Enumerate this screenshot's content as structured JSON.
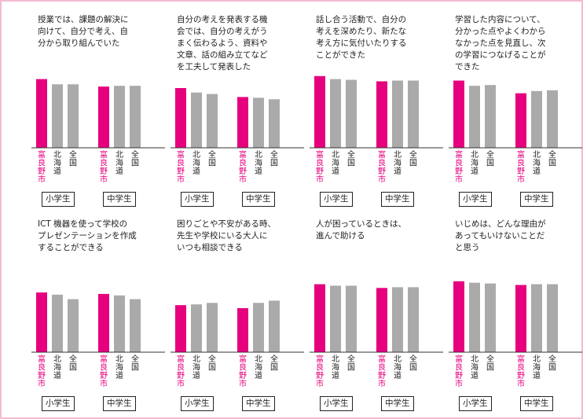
{
  "colors": {
    "city": "#e6007e",
    "other": "#aaaaaa",
    "axis": "#333333"
  },
  "chart_data": [
    {
      "type": "bar",
      "title": "授業では、課題の解決に\n向けて、自分で考え、自\n分から取り組んでいた",
      "categories": [
        "富良野市",
        "北海道",
        "全国"
      ],
      "series": [
        {
          "name": "小学生",
          "values": [
            92,
            85,
            85
          ]
        },
        {
          "name": "中学生",
          "values": [
            82,
            83,
            83
          ]
        }
      ]
    },
    {
      "type": "bar",
      "title": "自分の考えを発表する機\n会では、自分の考えがう\nまく伝わるよう、資料や\n文章、話の組み立てなど\nを工夫して発表した",
      "categories": [
        "富良野市",
        "北海道",
        "全国"
      ],
      "series": [
        {
          "name": "小学生",
          "values": [
            80,
            74,
            72
          ]
        },
        {
          "name": "中学生",
          "values": [
            68,
            67,
            65
          ]
        }
      ]
    },
    {
      "type": "bar",
      "title": "話し合う活動で、自分の\n考えを深めたり、新たな\n考え方に気付いたりする\nことができた",
      "categories": [
        "富良野市",
        "北海道",
        "全国"
      ],
      "series": [
        {
          "name": "小学生",
          "values": [
            96,
            92,
            91
          ]
        },
        {
          "name": "中学生",
          "values": [
            89,
            90,
            90
          ]
        }
      ]
    },
    {
      "type": "bar",
      "title": "学習した内容について、\n分かった点やよくわから\nなかった点を見直し、次\nの学習につなげることが\nできた",
      "categories": [
        "富良野市",
        "北海道",
        "全国"
      ],
      "series": [
        {
          "name": "小学生",
          "values": [
            90,
            83,
            84
          ]
        },
        {
          "name": "中学生",
          "values": [
            73,
            76,
            77
          ]
        }
      ]
    },
    {
      "type": "bar",
      "title": "ICT 機器を使って学校の\nプレゼンテーションを作成\nすることができる",
      "categories": [
        "富良野市",
        "北海道",
        "全国"
      ],
      "series": [
        {
          "name": "小学生",
          "values": [
            80,
            77,
            71
          ]
        },
        {
          "name": "中学生",
          "values": [
            78,
            76,
            71
          ]
        }
      ]
    },
    {
      "type": "bar",
      "title": "困りごとや不安がある時、\n先生や学校にいる大人に\nいつも相談できる",
      "categories": [
        "富良野市",
        "北海道",
        "全国"
      ],
      "series": [
        {
          "name": "小学生",
          "values": [
            63,
            64,
            66
          ]
        },
        {
          "name": "中学生",
          "values": [
            59,
            66,
            69
          ]
        }
      ]
    },
    {
      "type": "bar",
      "title": "人が困っているときは、\n進んで助ける",
      "categories": [
        "富良野市",
        "北海道",
        "全国"
      ],
      "series": [
        {
          "name": "小学生",
          "values": [
            91,
            89,
            89
          ]
        },
        {
          "name": "中学生",
          "values": [
            86,
            87,
            87
          ]
        }
      ]
    },
    {
      "type": "bar",
      "title": "いじめは、どんな理由が\nあってもいけないことだ\nと思う",
      "categories": [
        "富良野市",
        "北海道",
        "全国"
      ],
      "series": [
        {
          "name": "小学生",
          "values": [
            95,
            93,
            92
          ]
        },
        {
          "name": "中学生",
          "values": [
            90,
            91,
            91
          ]
        }
      ]
    }
  ]
}
